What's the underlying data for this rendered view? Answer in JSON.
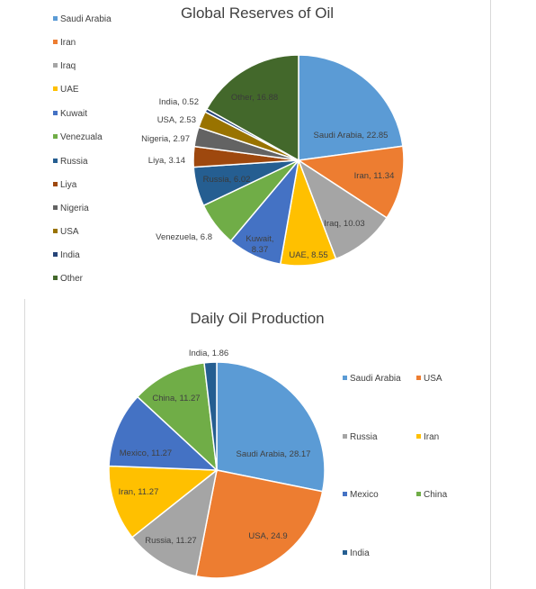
{
  "colors": [
    "#5b9bd5",
    "#ed7d31",
    "#a5a5a5",
    "#ffc000",
    "#4472c4",
    "#70ad47",
    "#255e91",
    "#9e480e",
    "#636363",
    "#997300",
    "#264478",
    "#43682b"
  ],
  "chart_data": [
    {
      "type": "pie",
      "title": "Global Reserves of Oil",
      "categories": [
        "Saudi Arabia",
        "Iran",
        "Iraq",
        "UAE",
        "Kuwait",
        "Venezuala",
        "Russia",
        "Liya",
        "Nigeria",
        "USA",
        "India",
        "Other"
      ],
      "values": [
        22.85,
        11.34,
        10.03,
        8.55,
        8.37,
        6.8,
        6.02,
        3.14,
        2.97,
        2.53,
        0.52,
        16.88
      ],
      "data_labels": [
        "Saudi Arabia, 22.85",
        "Iran, 11.34",
        "Iraq, 10.03",
        "UAE, 8.55",
        "Kuwait, 8.37",
        "Venezuela, 6.8",
        "Russia, 6.02",
        "Liya, 3.14",
        "Nigeria, 2.97",
        "USA, 2.53",
        "India, 0.52",
        "Other, 16.88"
      ],
      "legend": "left"
    },
    {
      "type": "pie",
      "title": "Daily Oil Production",
      "categories": [
        "Saudi Arabia",
        "USA",
        "Russia",
        "Iran",
        "Mexico",
        "China",
        "India"
      ],
      "values": [
        28.17,
        24.9,
        11.27,
        11.27,
        11.27,
        11.27,
        1.86
      ],
      "data_labels": [
        "Saudi Arabia, 28.17",
        "USA, 24.9",
        "Russia, 11.27",
        "Iran, 11.27",
        "Mexico, 11.27",
        "China, 11.27",
        "India, 1.86"
      ],
      "legend": "right"
    }
  ]
}
